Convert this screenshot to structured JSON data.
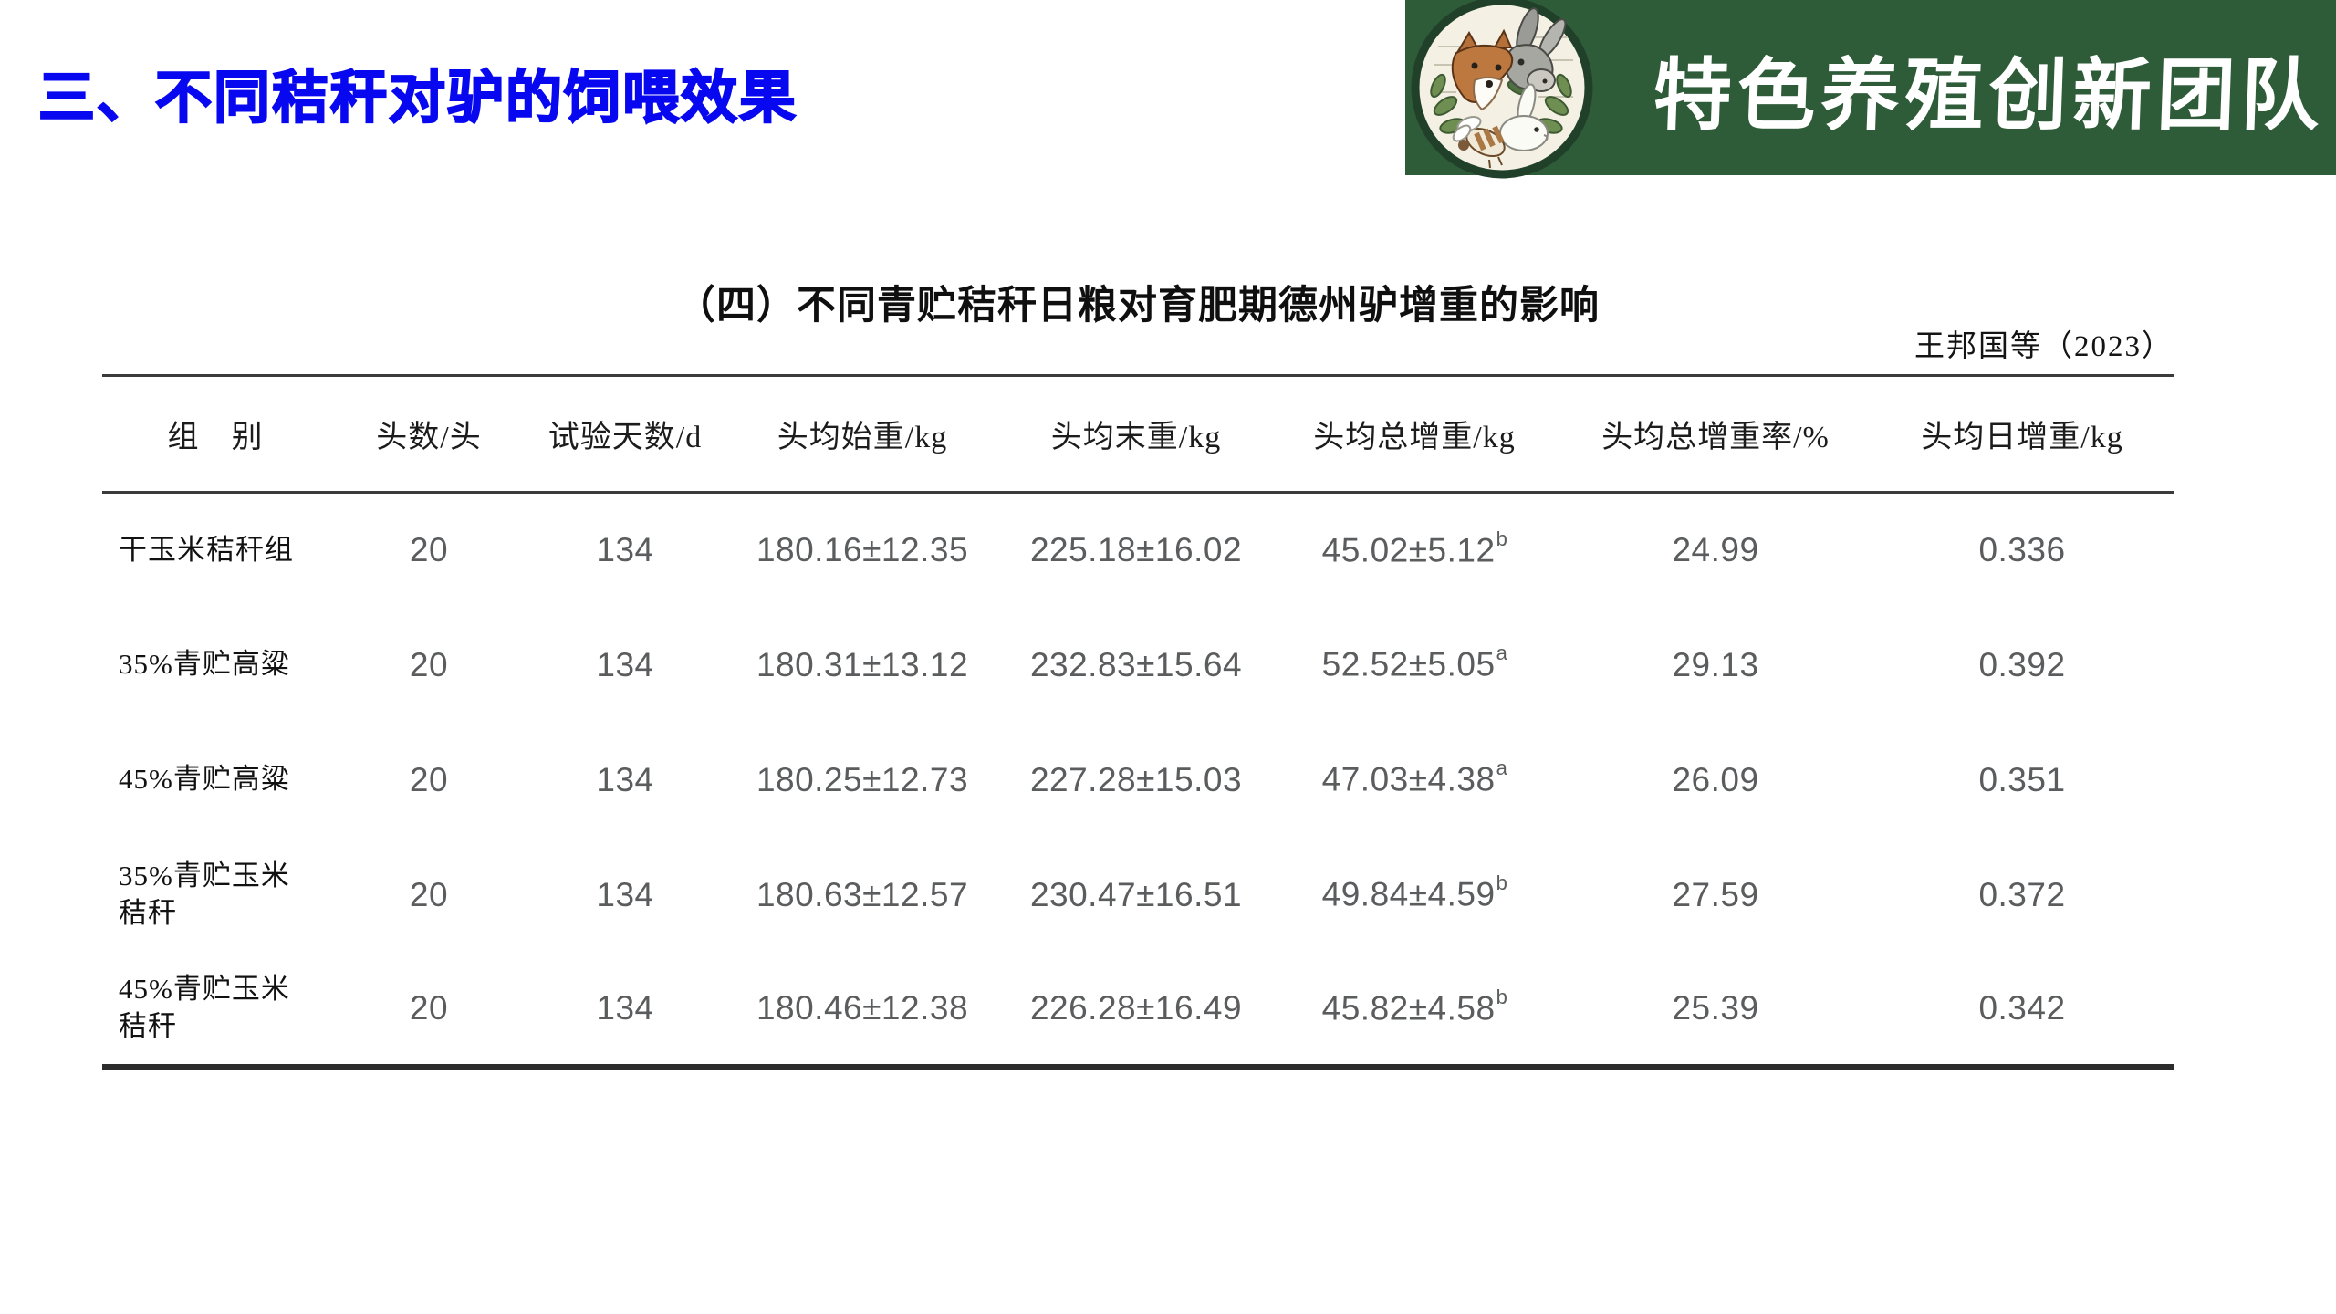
{
  "slide": {
    "title": "三、不同秸秆对驴的饲喂效果",
    "banner": {
      "team_name": "特色养殖创新团队",
      "logo_name": "farm-animals-circle-logo"
    },
    "table": {
      "caption": "（四）不同青贮秸秆日粮对育肥期德州驴增重的影响",
      "citation": "王邦国等（2023）",
      "columns": [
        "组　别",
        "头数/头",
        "试验天数/d",
        "头均始重/kg",
        "头均末重/kg",
        "头均总增重/kg",
        "头均总增重率/%",
        "头均日增重/kg"
      ],
      "rows": [
        {
          "group": "干玉米秸秆组",
          "n": "20",
          "days": "134",
          "initial": "180.16±12.35",
          "final": "225.18±16.02",
          "gain": "45.02±5.12",
          "gain_sup": "b",
          "gain_rate": "24.99",
          "daily_gain": "0.336"
        },
        {
          "group": "35%青贮高粱",
          "n": "20",
          "days": "134",
          "initial": "180.31±13.12",
          "final": "232.83±15.64",
          "gain": "52.52±5.05",
          "gain_sup": "a",
          "gain_rate": "29.13",
          "daily_gain": "0.392"
        },
        {
          "group": "45%青贮高粱",
          "n": "20",
          "days": "134",
          "initial": "180.25±12.73",
          "final": "227.28±15.03",
          "gain": "47.03±4.38",
          "gain_sup": "a",
          "gain_rate": "26.09",
          "daily_gain": "0.351"
        },
        {
          "group": "35%青贮玉米\n秸秆",
          "n": "20",
          "days": "134",
          "initial": "180.63±12.57",
          "final": "230.47±16.51",
          "gain": "49.84±4.59",
          "gain_sup": "b",
          "gain_rate": "27.59",
          "daily_gain": "0.372"
        },
        {
          "group": "45%青贮玉米\n秸秆",
          "n": "20",
          "days": "134",
          "initial": "180.46±12.38",
          "final": "226.28±16.49",
          "gain": "45.82±4.58",
          "gain_sup": "b",
          "gain_rate": "25.39",
          "daily_gain": "0.342"
        }
      ]
    },
    "colors": {
      "title_blue": "#0808f0",
      "banner_green": "#2e5b38",
      "number_grey": "#5a5c5e"
    }
  }
}
